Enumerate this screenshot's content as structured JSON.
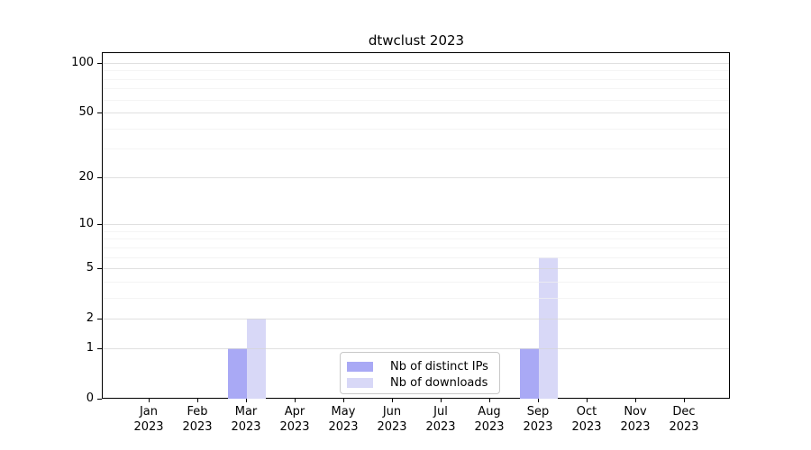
{
  "title": "dtwclust 2023",
  "colors": {
    "background": "#ffffff",
    "text": "#000000",
    "spine": "#000000",
    "grid_major": "#d6d6d6",
    "grid_minor": "#f0f0f0",
    "legend_border": "#c9c9c9",
    "ips_bar": "#a9a9f5",
    "downloads_bar": "#d8d8f7"
  },
  "chart_data": {
    "type": "bar",
    "title": "dtwclust 2023",
    "y_scale": "log1p",
    "ylim": [
      0,
      100
    ],
    "y_ticks": [
      0,
      1,
      2,
      5,
      10,
      20,
      50,
      100
    ],
    "y_minor_ticks": [
      3,
      4,
      6,
      7,
      8,
      9,
      30,
      40,
      60,
      70,
      80,
      90
    ],
    "grid": true,
    "categories": [
      "Jan 2023",
      "Feb 2023",
      "Mar 2023",
      "Apr 2023",
      "May 2023",
      "Jun 2023",
      "Jul 2023",
      "Aug 2023",
      "Sep 2023",
      "Oct 2023",
      "Nov 2023",
      "Dec 2023"
    ],
    "series": [
      {
        "name": "Nb of distinct IPs",
        "color": "#a9a9f5",
        "values": [
          0,
          0,
          1,
          0,
          0,
          0,
          0,
          0,
          1,
          0,
          0,
          0
        ]
      },
      {
        "name": "Nb of downloads",
        "color": "#d8d8f7",
        "values": [
          0,
          0,
          2,
          0,
          0,
          0,
          0,
          0,
          6,
          0,
          0,
          0
        ]
      }
    ],
    "legend_position": "lower center",
    "xlabel": "",
    "ylabel": ""
  }
}
